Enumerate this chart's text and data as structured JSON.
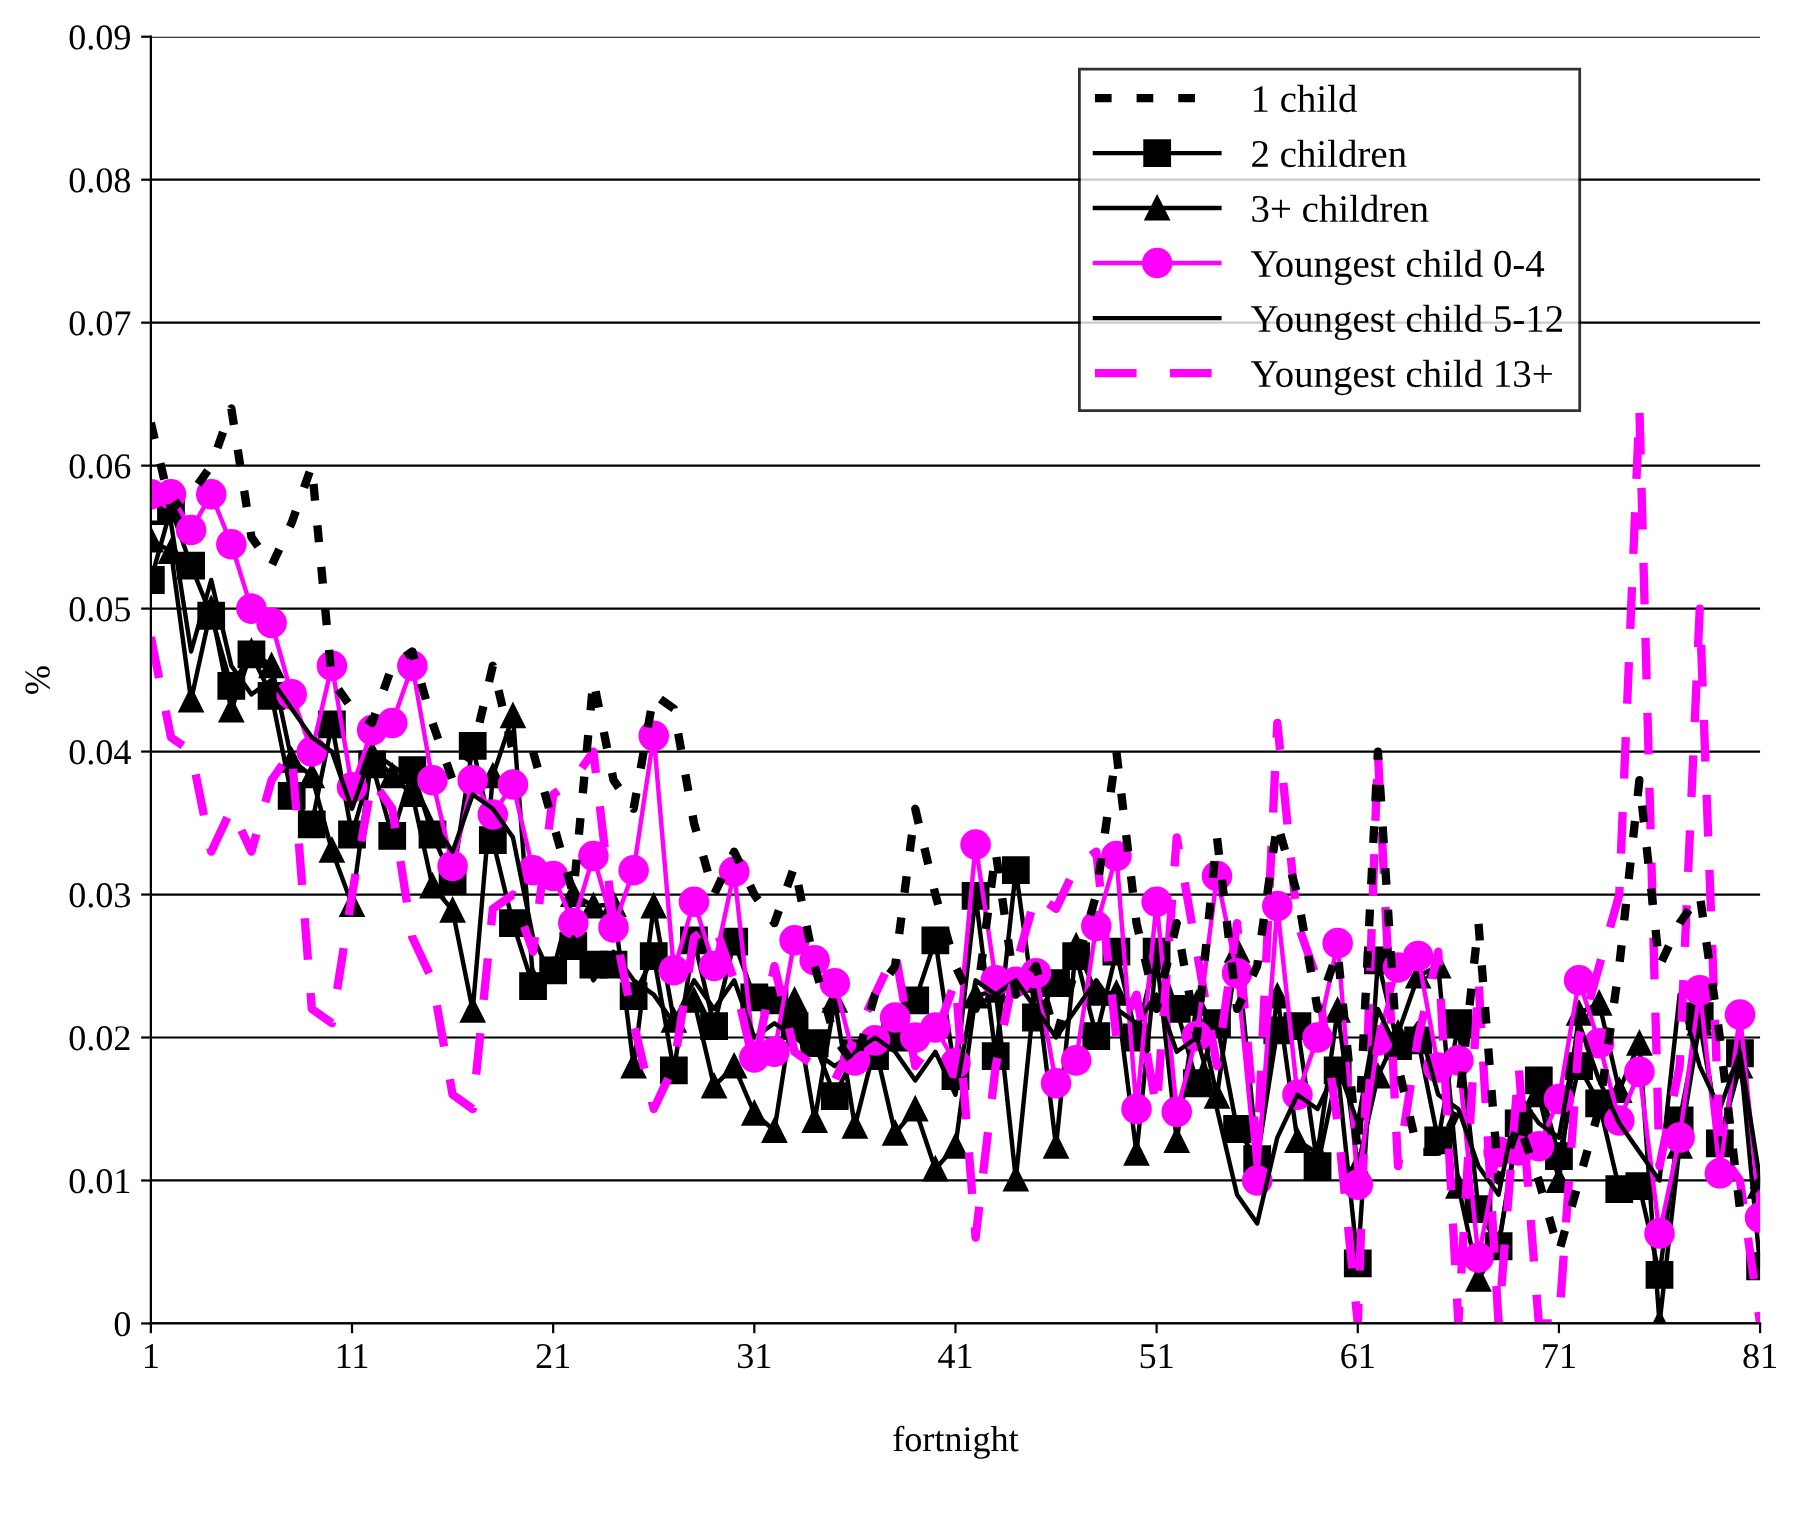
{
  "chart_data": {
    "type": "line",
    "xlabel": "fortnight",
    "ylabel": "%",
    "x": [
      1,
      2,
      3,
      4,
      5,
      6,
      7,
      8,
      9,
      10,
      11,
      12,
      13,
      14,
      15,
      16,
      17,
      18,
      19,
      20,
      21,
      22,
      23,
      24,
      25,
      26,
      27,
      28,
      29,
      30,
      31,
      32,
      33,
      34,
      35,
      36,
      37,
      38,
      39,
      40,
      41,
      42,
      43,
      44,
      45,
      46,
      47,
      48,
      49,
      50,
      51,
      52,
      53,
      54,
      55,
      56,
      57,
      58,
      59,
      60,
      61,
      62,
      63,
      64,
      65,
      66,
      67,
      68,
      69,
      70,
      71,
      72,
      73,
      74,
      75,
      76,
      77,
      78,
      79,
      80,
      81
    ],
    "xlim": [
      1,
      81
    ],
    "xticks": [
      1,
      11,
      21,
      31,
      41,
      51,
      61,
      71,
      81
    ],
    "ylim": [
      0,
      0.09
    ],
    "yticks": [
      0,
      0.01,
      0.02,
      0.03,
      0.04,
      0.05,
      0.06,
      0.07,
      0.08,
      0.09
    ],
    "grid": "y",
    "legend": "top right",
    "series": [
      {
        "name": "1 child",
        "color": "#000000",
        "marker": "none",
        "line_style": "dotted",
        "values": [
          0.063,
          0.057,
          0.058,
          0.06,
          0.064,
          0.055,
          0.053,
          0.056,
          0.06,
          0.045,
          0.043,
          0.042,
          0.046,
          0.047,
          0.042,
          0.038,
          0.04,
          0.046,
          0.04,
          0.04,
          0.035,
          0.03,
          0.045,
          0.038,
          0.036,
          0.044,
          0.043,
          0.035,
          0.03,
          0.033,
          0.03,
          0.028,
          0.032,
          0.025,
          0.02,
          0.018,
          0.023,
          0.025,
          0.036,
          0.03,
          0.025,
          0.022,
          0.033,
          0.023,
          0.025,
          0.02,
          0.025,
          0.03,
          0.04,
          0.028,
          0.022,
          0.028,
          0.02,
          0.034,
          0.022,
          0.025,
          0.035,
          0.03,
          0.022,
          0.026,
          0.012,
          0.04,
          0.018,
          0.012,
          0.012,
          0.015,
          0.028,
          0.01,
          0.014,
          0.01,
          0.005,
          0.01,
          0.015,
          0.025,
          0.038,
          0.025,
          0.028,
          0.03,
          0.02,
          0.008,
          0.01
        ]
      },
      {
        "name": "2 children",
        "color": "#000000",
        "marker": "square",
        "line_style": "solid",
        "values": [
          0.052,
          0.057,
          0.053,
          0.0495,
          0.0446,
          0.0468,
          0.0439,
          0.0369,
          0.0349,
          0.0419,
          0.0342,
          0.0391,
          0.0341,
          0.0387,
          0.0342,
          0.031,
          0.0404,
          0.0338,
          0.028,
          0.0236,
          0.0247,
          0.0264,
          0.0251,
          0.0251,
          0.0229,
          0.0257,
          0.0177,
          0.0268,
          0.0208,
          0.0267,
          0.0228,
          0.0226,
          0.0208,
          0.0196,
          0.0159,
          0.0189,
          0.0187,
          0.02,
          0.0226,
          0.0268,
          0.0173,
          0.0299,
          0.0187,
          0.0317,
          0.0214,
          0.0238,
          0.0257,
          0.0201,
          0.026,
          0.02,
          0.026,
          0.022,
          0.0168,
          0.021,
          0.0136,
          0.0115,
          0.0205,
          0.0208,
          0.011,
          0.0177,
          0.0042,
          0.0254,
          0.0194,
          0.0198,
          0.0128,
          0.021,
          0.008,
          0.0054,
          0.014,
          0.017,
          0.0117,
          0.018,
          0.0154,
          0.0094,
          0.0096,
          0.0034,
          0.0142,
          0.0215,
          0.0126,
          0.0189,
          0.004
        ]
      },
      {
        "name": "3+ children",
        "color": "#000000",
        "marker": "triangle",
        "line_style": "solid",
        "values": [
          0.0548,
          0.054,
          0.0436,
          0.05,
          0.0429,
          0.047,
          0.046,
          0.0394,
          0.0383,
          0.0331,
          0.0293,
          0.0398,
          0.0383,
          0.037,
          0.0306,
          0.0289,
          0.0219,
          0.0383,
          0.0425,
          0.024,
          0.0247,
          0.03,
          0.0292,
          0.0293,
          0.018,
          0.0292,
          0.0212,
          0.0226,
          0.0166,
          0.018,
          0.0147,
          0.0135,
          0.0226,
          0.0142,
          0.0226,
          0.0138,
          0.0194,
          0.0133,
          0.015,
          0.0108,
          0.0124,
          0.0229,
          0.0233,
          0.0101,
          0.024,
          0.0124,
          0.0264,
          0.0231,
          0.0231,
          0.0119,
          0.0257,
          0.0128,
          0.0224,
          0.0159,
          0.0261,
          0.0117,
          0.0229,
          0.0128,
          0.0119,
          0.0219,
          0.011,
          0.0173,
          0.0203,
          0.0243,
          0.025,
          0.0096,
          0.0031,
          0.0055,
          0.0142,
          0.016,
          0.01,
          0.0217,
          0.0224,
          0.0163,
          0.0196,
          0.0,
          0.0124,
          0.021,
          0.0128,
          0.018,
          0.0096
        ]
      },
      {
        "name": "Youngest child 0-4",
        "color": "#ff00ff",
        "marker": "circle",
        "line_style": "solid",
        "values": [
          0.058,
          0.058,
          0.0555,
          0.058,
          0.0545,
          0.05,
          0.049,
          0.044,
          0.04,
          0.046,
          0.0375,
          0.0415,
          0.042,
          0.046,
          0.038,
          0.032,
          0.038,
          0.0356,
          0.0377,
          0.0317,
          0.0313,
          0.028,
          0.0327,
          0.0277,
          0.0317,
          0.0411,
          0.0247,
          0.0295,
          0.025,
          0.0316,
          0.0186,
          0.019,
          0.0268,
          0.0254,
          0.0238,
          0.0184,
          0.0198,
          0.0214,
          0.02,
          0.0207,
          0.0182,
          0.0335,
          0.024,
          0.0239,
          0.0245,
          0.0168,
          0.0184,
          0.0278,
          0.0327,
          0.015,
          0.0295,
          0.0148,
          0.0201,
          0.0313,
          0.0245,
          0.01,
          0.0292,
          0.016,
          0.02,
          0.0266,
          0.0097,
          0.0198,
          0.0249,
          0.0257,
          0.0179,
          0.0184,
          0.0046,
          0.012,
          0.0121,
          0.0124,
          0.0157,
          0.024,
          0.0196,
          0.0142,
          0.0176,
          0.0063,
          0.013,
          0.0233,
          0.0105,
          0.0216,
          0.0074
        ]
      },
      {
        "name": "Youngest child 5-12",
        "color": "#000000",
        "marker": "none",
        "line_style": "solid",
        "values": [
          0.056,
          0.056,
          0.047,
          0.052,
          0.046,
          0.044,
          0.045,
          0.043,
          0.041,
          0.04,
          0.036,
          0.04,
          0.039,
          0.038,
          0.035,
          0.033,
          0.037,
          0.036,
          0.034,
          0.027,
          0.024,
          0.027,
          0.024,
          0.026,
          0.024,
          0.023,
          0.021,
          0.024,
          0.022,
          0.024,
          0.02,
          0.021,
          0.02,
          0.019,
          0.018,
          0.019,
          0.02,
          0.019,
          0.017,
          0.019,
          0.016,
          0.024,
          0.023,
          0.024,
          0.022,
          0.02,
          0.022,
          0.024,
          0.022,
          0.021,
          0.023,
          0.019,
          0.02,
          0.015,
          0.009,
          0.007,
          0.013,
          0.016,
          0.015,
          0.018,
          0.014,
          0.022,
          0.019,
          0.021,
          0.016,
          0.015,
          0.011,
          0.009,
          0.016,
          0.014,
          0.013,
          0.021,
          0.017,
          0.014,
          0.012,
          0.01,
          0.023,
          0.018,
          0.015,
          0.019,
          0.01
        ]
      },
      {
        "name": "Youngest child 13+",
        "color": "#ff00ff",
        "marker": "none",
        "line_style": "dashed",
        "values": [
          0.048,
          0.041,
          0.04,
          0.033,
          0.036,
          0.033,
          0.038,
          0.04,
          0.022,
          0.021,
          0.03,
          0.038,
          0.036,
          0.027,
          0.024,
          0.016,
          0.015,
          0.029,
          0.03,
          0.026,
          0.037,
          0.038,
          0.04,
          0.028,
          0.021,
          0.015,
          0.018,
          0.027,
          0.028,
          0.024,
          0.018,
          0.025,
          0.019,
          0.018,
          0.017,
          0.02,
          0.023,
          0.026,
          0.018,
          0.02,
          0.024,
          0.006,
          0.018,
          0.025,
          0.03,
          0.029,
          0.032,
          0.033,
          0.02,
          0.023,
          0.015,
          0.034,
          0.026,
          0.018,
          0.028,
          0.012,
          0.042,
          0.028,
          0.024,
          0.014,
          0.0,
          0.04,
          0.011,
          0.02,
          0.026,
          0.0,
          0.024,
          0.0,
          0.018,
          0.0,
          0.0,
          0.02,
          0.025,
          0.03,
          0.064,
          0.011,
          0.018,
          0.05,
          0.012,
          0.01,
          0.0
        ]
      }
    ]
  }
}
